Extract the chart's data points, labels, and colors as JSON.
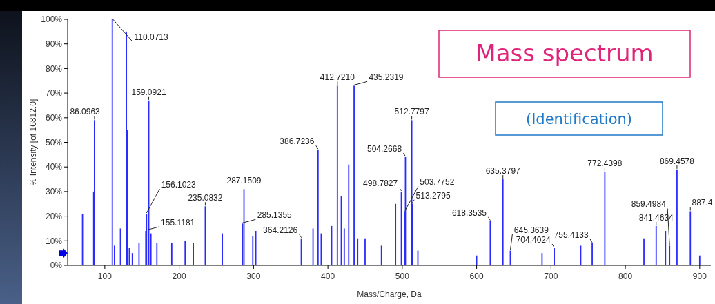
{
  "chart_data": {
    "type": "bar",
    "ylabel": "% Intensity [of 16812.0]",
    "xlabel": "Mass/Charge, Da",
    "x": [
      70,
      85,
      86.0963,
      110.0713,
      113,
      121,
      129,
      130,
      133,
      137,
      146,
      155.1181,
      156.1023,
      159.0921,
      162,
      170,
      190,
      208,
      219,
      235.0832,
      258,
      285.1355,
      287.1509,
      299,
      303,
      364.2126,
      380,
      386.7236,
      391,
      405,
      412.721,
      418,
      422,
      428,
      435.2319,
      440,
      450,
      472,
      491,
      498.7827,
      503.7752,
      504.2668,
      512.7797,
      513.2795,
      521,
      600,
      618.3535,
      635.3797,
      645.3639,
      688,
      704.4024,
      740,
      755.4133,
      772.4398,
      825,
      841.4634,
      854,
      859.4984,
      869.4578,
      887.4,
      900
    ],
    "series": [
      {
        "color": "#2b2bff",
        "values": [
          21,
          30,
          59,
          100,
          8,
          15,
          95,
          55,
          7,
          5,
          9,
          14,
          21,
          67,
          13,
          9,
          9,
          10,
          9,
          24,
          13,
          17,
          31,
          12,
          14,
          11,
          15,
          47,
          13,
          16,
          73,
          28,
          15,
          41,
          73,
          11,
          11,
          8,
          25,
          30,
          22,
          44,
          59,
          25,
          6,
          4,
          18,
          35,
          6,
          5,
          7,
          8,
          9,
          38,
          11,
          16,
          14,
          8,
          39,
          22,
          4
        ]
      }
    ],
    "xlim": [
      50,
      915
    ],
    "xticks": [
      100,
      200,
      300,
      400,
      500,
      600,
      700,
      800,
      900
    ],
    "ylim": [
      0,
      100
    ],
    "yticks": [
      {
        "value": 0,
        "label": "0%"
      },
      {
        "value": 10,
        "label": "10%"
      },
      {
        "value": 20,
        "label": "20%"
      },
      {
        "value": 30,
        "label": "30%"
      },
      {
        "value": 40,
        "label": "40%"
      },
      {
        "value": 50,
        "label": "50%"
      },
      {
        "value": 60,
        "label": "60%"
      },
      {
        "value": 70,
        "label": "70%"
      },
      {
        "value": 80,
        "label": "80%"
      },
      {
        "value": 90,
        "label": "90%"
      },
      {
        "value": 100,
        "label": "100%"
      }
    ],
    "annotations": [
      "Mass spectrum",
      "(Identification)",
      {
        "text": "86.0963",
        "x": 86.0963,
        "y": 59
      },
      {
        "text": "110.0713",
        "x": 110.0713,
        "y": 100
      },
      {
        "text": "159.0921",
        "x": 159.0921,
        "y": 67
      },
      {
        "text": "156.1023",
        "x": 156.1023,
        "y": 21
      },
      {
        "text": "155.1181",
        "x": 155.1181,
        "y": 14
      },
      {
        "text": "235.0832",
        "x": 235.0832,
        "y": 24
      },
      {
        "text": "287.1509",
        "x": 287.1509,
        "y": 31
      },
      {
        "text": "285.1355",
        "x": 285.1355,
        "y": 17
      },
      {
        "text": "364.2126",
        "x": 364.2126,
        "y": 11
      },
      {
        "text": "386.7236",
        "x": 386.7236,
        "y": 47
      },
      {
        "text": "412.7210",
        "x": 412.721,
        "y": 73
      },
      {
        "text": "435.2319",
        "x": 435.2319,
        "y": 73
      },
      {
        "text": "512.7797",
        "x": 512.7797,
        "y": 59
      },
      {
        "text": "504.2668",
        "x": 504.2668,
        "y": 44
      },
      {
        "text": "498.7827",
        "x": 498.7827,
        "y": 30
      },
      {
        "text": "513.2795",
        "x": 513.2795,
        "y": 25
      },
      {
        "text": "503.7752",
        "x": 503.7752,
        "y": 22
      },
      {
        "text": "635.3797",
        "x": 635.3797,
        "y": 35
      },
      {
        "text": "618.3535",
        "x": 618.3535,
        "y": 18
      },
      {
        "text": "645.3639",
        "x": 645.3639,
        "y": 6
      },
      {
        "text": "755.4133",
        "x": 755.4133,
        "y": 9
      },
      {
        "text": "704.4024",
        "x": 704.4024,
        "y": 7
      },
      {
        "text": "772.4398",
        "x": 772.4398,
        "y": 38
      },
      {
        "text": "869.4578",
        "x": 869.4578,
        "y": 39
      },
      {
        "text": "841.4634",
        "x": 841.4634,
        "y": 16
      },
      {
        "text": "859.4984",
        "x": 859.4984,
        "y": 8
      },
      {
        "text": "887.4",
        "x": 887.4,
        "y": 22
      }
    ]
  }
}
